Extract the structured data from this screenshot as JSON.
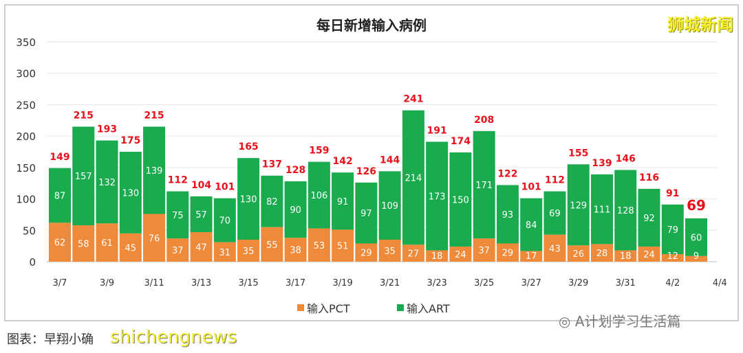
{
  "chart_data": {
    "type": "bar",
    "stacked": true,
    "title": "每日新增输入病例",
    "categories": [
      "3/7",
      "3/8",
      "3/9",
      "3/10",
      "3/11",
      "3/12",
      "3/13",
      "3/14",
      "3/15",
      "3/16",
      "3/17",
      "3/18",
      "3/19",
      "3/20",
      "3/21",
      "3/22",
      "3/23",
      "3/24",
      "3/25",
      "3/26",
      "3/27",
      "3/28",
      "3/29",
      "3/30",
      "3/31",
      "4/1",
      "4/2",
      "4/3"
    ],
    "xtick_labels": [
      "3/7",
      "3/9",
      "3/11",
      "3/13",
      "3/15",
      "3/17",
      "3/19",
      "3/21",
      "3/23",
      "3/25",
      "3/27",
      "3/29",
      "3/31",
      "4/2",
      "4/4"
    ],
    "series": [
      {
        "name": "输入PCT",
        "color": "#ee8a3a",
        "values": [
          62,
          58,
          61,
          45,
          76,
          37,
          47,
          31,
          35,
          55,
          38,
          53,
          51,
          29,
          35,
          27,
          18,
          24,
          37,
          29,
          17,
          43,
          26,
          28,
          18,
          24,
          12,
          9
        ]
      },
      {
        "name": "输入ART",
        "color": "#1aab4e",
        "values": [
          87,
          157,
          132,
          130,
          139,
          75,
          57,
          70,
          130,
          82,
          90,
          106,
          91,
          97,
          109,
          214,
          173,
          150,
          171,
          93,
          84,
          69,
          129,
          111,
          128,
          92,
          79,
          60
        ]
      }
    ],
    "totals": [
      149,
      215,
      193,
      175,
      215,
      112,
      104,
      101,
      165,
      137,
      128,
      159,
      142,
      126,
      144,
      241,
      191,
      174,
      208,
      122,
      101,
      112,
      155,
      139,
      146,
      116,
      91,
      69
    ],
    "total_label_color": "#e8101a",
    "ylim": [
      0,
      350
    ],
    "yticks": [
      0,
      50,
      100,
      150,
      200,
      250,
      300,
      350
    ],
    "grid": true,
    "legend_position": "bottom"
  },
  "watermarks": {
    "brand": "狮城新闻",
    "credit": "图表：早翔小确",
    "site": "shichengnews",
    "wechat": "A计划学习生活篇"
  }
}
